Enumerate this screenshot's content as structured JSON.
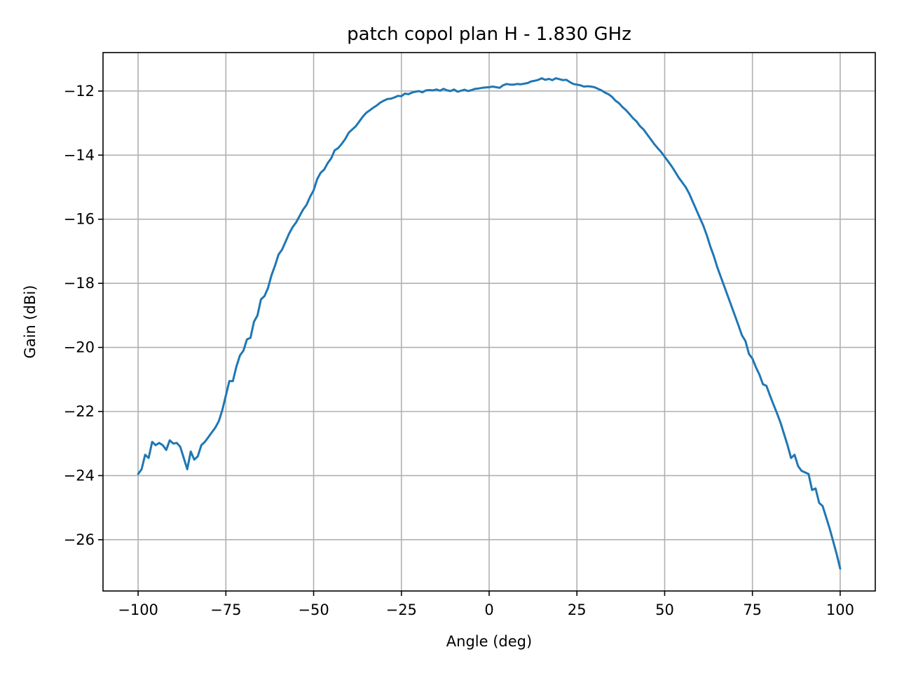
{
  "chart_data": {
    "type": "line",
    "title": "patch copol plan H - 1.830 GHz",
    "xlabel": "Angle (deg)",
    "ylabel": "Gain (dBi)",
    "xlim": [
      -110,
      110
    ],
    "ylim": [
      -27.6,
      -10.8
    ],
    "x_ticks": [
      -100,
      -75,
      -50,
      -25,
      0,
      25,
      50,
      75,
      100
    ],
    "y_ticks": [
      -26,
      -24,
      -22,
      -20,
      -18,
      -16,
      -14,
      -12
    ],
    "grid": true,
    "legend": "none",
    "colors": {
      "series": "#1f77b4",
      "grid": "#b0b0b0",
      "axes": "#000000"
    },
    "series": [
      {
        "x": [
          -100,
          -99,
          -98,
          -97,
          -96,
          -95,
          -94,
          -93,
          -92,
          -91,
          -90,
          -89,
          -88,
          -87,
          -86,
          -85,
          -84,
          -83,
          -82,
          -81,
          -80,
          -79,
          -78,
          -77,
          -76,
          -75,
          -74,
          -73,
          -72,
          -71,
          -70,
          -69,
          -68,
          -67,
          -66,
          -65,
          -64,
          -63,
          -62,
          -61,
          -60,
          -59,
          -58,
          -57,
          -56,
          -55,
          -54,
          -53,
          -52,
          -51,
          -50,
          -49,
          -48,
          -47,
          -46,
          -45,
          -44,
          -43,
          -42,
          -41,
          -40,
          -39,
          -38,
          -37,
          -36,
          -35,
          -34,
          -33,
          -32,
          -31,
          -30,
          -29,
          -28,
          -27,
          -26,
          -25,
          -24,
          -23,
          -22,
          -21,
          -20,
          -19,
          -18,
          -17,
          -16,
          -15,
          -14,
          -13,
          -12,
          -11,
          -10,
          -9,
          -8,
          -7,
          -6,
          -5,
          -4,
          -3,
          -2,
          -1,
          0,
          1,
          2,
          3,
          4,
          5,
          6,
          7,
          8,
          9,
          10,
          11,
          12,
          13,
          14,
          15,
          16,
          17,
          18,
          19,
          20,
          21,
          22,
          23,
          24,
          25,
          26,
          27,
          28,
          29,
          30,
          31,
          32,
          33,
          34,
          35,
          36,
          37,
          38,
          39,
          40,
          41,
          42,
          43,
          44,
          45,
          46,
          47,
          48,
          49,
          50,
          51,
          52,
          53,
          54,
          55,
          56,
          57,
          58,
          59,
          60,
          61,
          62,
          63,
          64,
          65,
          66,
          67,
          68,
          69,
          70,
          71,
          72,
          73,
          74,
          75,
          76,
          77,
          78,
          79,
          80,
          81,
          82,
          83,
          84,
          85,
          86,
          87,
          88,
          89,
          90,
          91,
          92,
          93,
          94,
          95,
          96,
          97,
          98,
          99,
          100
        ],
        "y": [
          -23.95,
          -23.8,
          -23.35,
          -23.45,
          -22.95,
          -23.05,
          -22.98,
          -23.05,
          -23.2,
          -22.9,
          -23.0,
          -22.98,
          -23.1,
          -23.45,
          -23.8,
          -23.25,
          -23.5,
          -23.4,
          -23.05,
          -22.95,
          -22.8,
          -22.65,
          -22.5,
          -22.3,
          -21.95,
          -21.5,
          -21.05,
          -21.05,
          -20.6,
          -20.25,
          -20.1,
          -19.75,
          -19.7,
          -19.2,
          -19.0,
          -18.5,
          -18.4,
          -18.15,
          -17.75,
          -17.45,
          -17.1,
          -16.95,
          -16.7,
          -16.45,
          -16.25,
          -16.1,
          -15.9,
          -15.7,
          -15.55,
          -15.3,
          -15.1,
          -14.75,
          -14.55,
          -14.45,
          -14.25,
          -14.1,
          -13.85,
          -13.78,
          -13.65,
          -13.5,
          -13.3,
          -13.2,
          -13.1,
          -12.95,
          -12.8,
          -12.68,
          -12.6,
          -12.52,
          -12.45,
          -12.36,
          -12.3,
          -12.25,
          -12.24,
          -12.2,
          -12.15,
          -12.16,
          -12.08,
          -12.1,
          -12.05,
          -12.02,
          -12.0,
          -12.04,
          -11.98,
          -11.97,
          -11.98,
          -11.95,
          -11.99,
          -11.93,
          -11.98,
          -12.0,
          -11.95,
          -12.02,
          -11.99,
          -11.96,
          -12.0,
          -11.97,
          -11.93,
          -11.92,
          -11.9,
          -11.89,
          -11.88,
          -11.86,
          -11.88,
          -11.9,
          -11.82,
          -11.78,
          -11.8,
          -11.8,
          -11.78,
          -11.79,
          -11.77,
          -11.75,
          -11.7,
          -11.68,
          -11.65,
          -11.6,
          -11.65,
          -11.62,
          -11.66,
          -11.6,
          -11.63,
          -11.66,
          -11.65,
          -11.72,
          -11.78,
          -11.8,
          -11.82,
          -11.86,
          -11.85,
          -11.86,
          -11.88,
          -11.93,
          -11.98,
          -12.05,
          -12.1,
          -12.18,
          -12.3,
          -12.38,
          -12.5,
          -12.6,
          -12.72,
          -12.85,
          -12.95,
          -13.1,
          -13.2,
          -13.35,
          -13.5,
          -13.65,
          -13.78,
          -13.9,
          -14.05,
          -14.2,
          -14.35,
          -14.52,
          -14.7,
          -14.85,
          -15.0,
          -15.2,
          -15.45,
          -15.7,
          -15.95,
          -16.2,
          -16.5,
          -16.85,
          -17.15,
          -17.5,
          -17.8,
          -18.1,
          -18.4,
          -18.7,
          -19.0,
          -19.3,
          -19.62,
          -19.8,
          -20.2,
          -20.35,
          -20.62,
          -20.85,
          -21.15,
          -21.2,
          -21.5,
          -21.78,
          -22.05,
          -22.35,
          -22.7,
          -23.05,
          -23.45,
          -23.35,
          -23.7,
          -23.85,
          -23.9,
          -23.95,
          -24.45,
          -24.4,
          -24.85,
          -24.95,
          -25.3,
          -25.65,
          -26.05,
          -26.45,
          -26.9
        ]
      }
    ]
  }
}
